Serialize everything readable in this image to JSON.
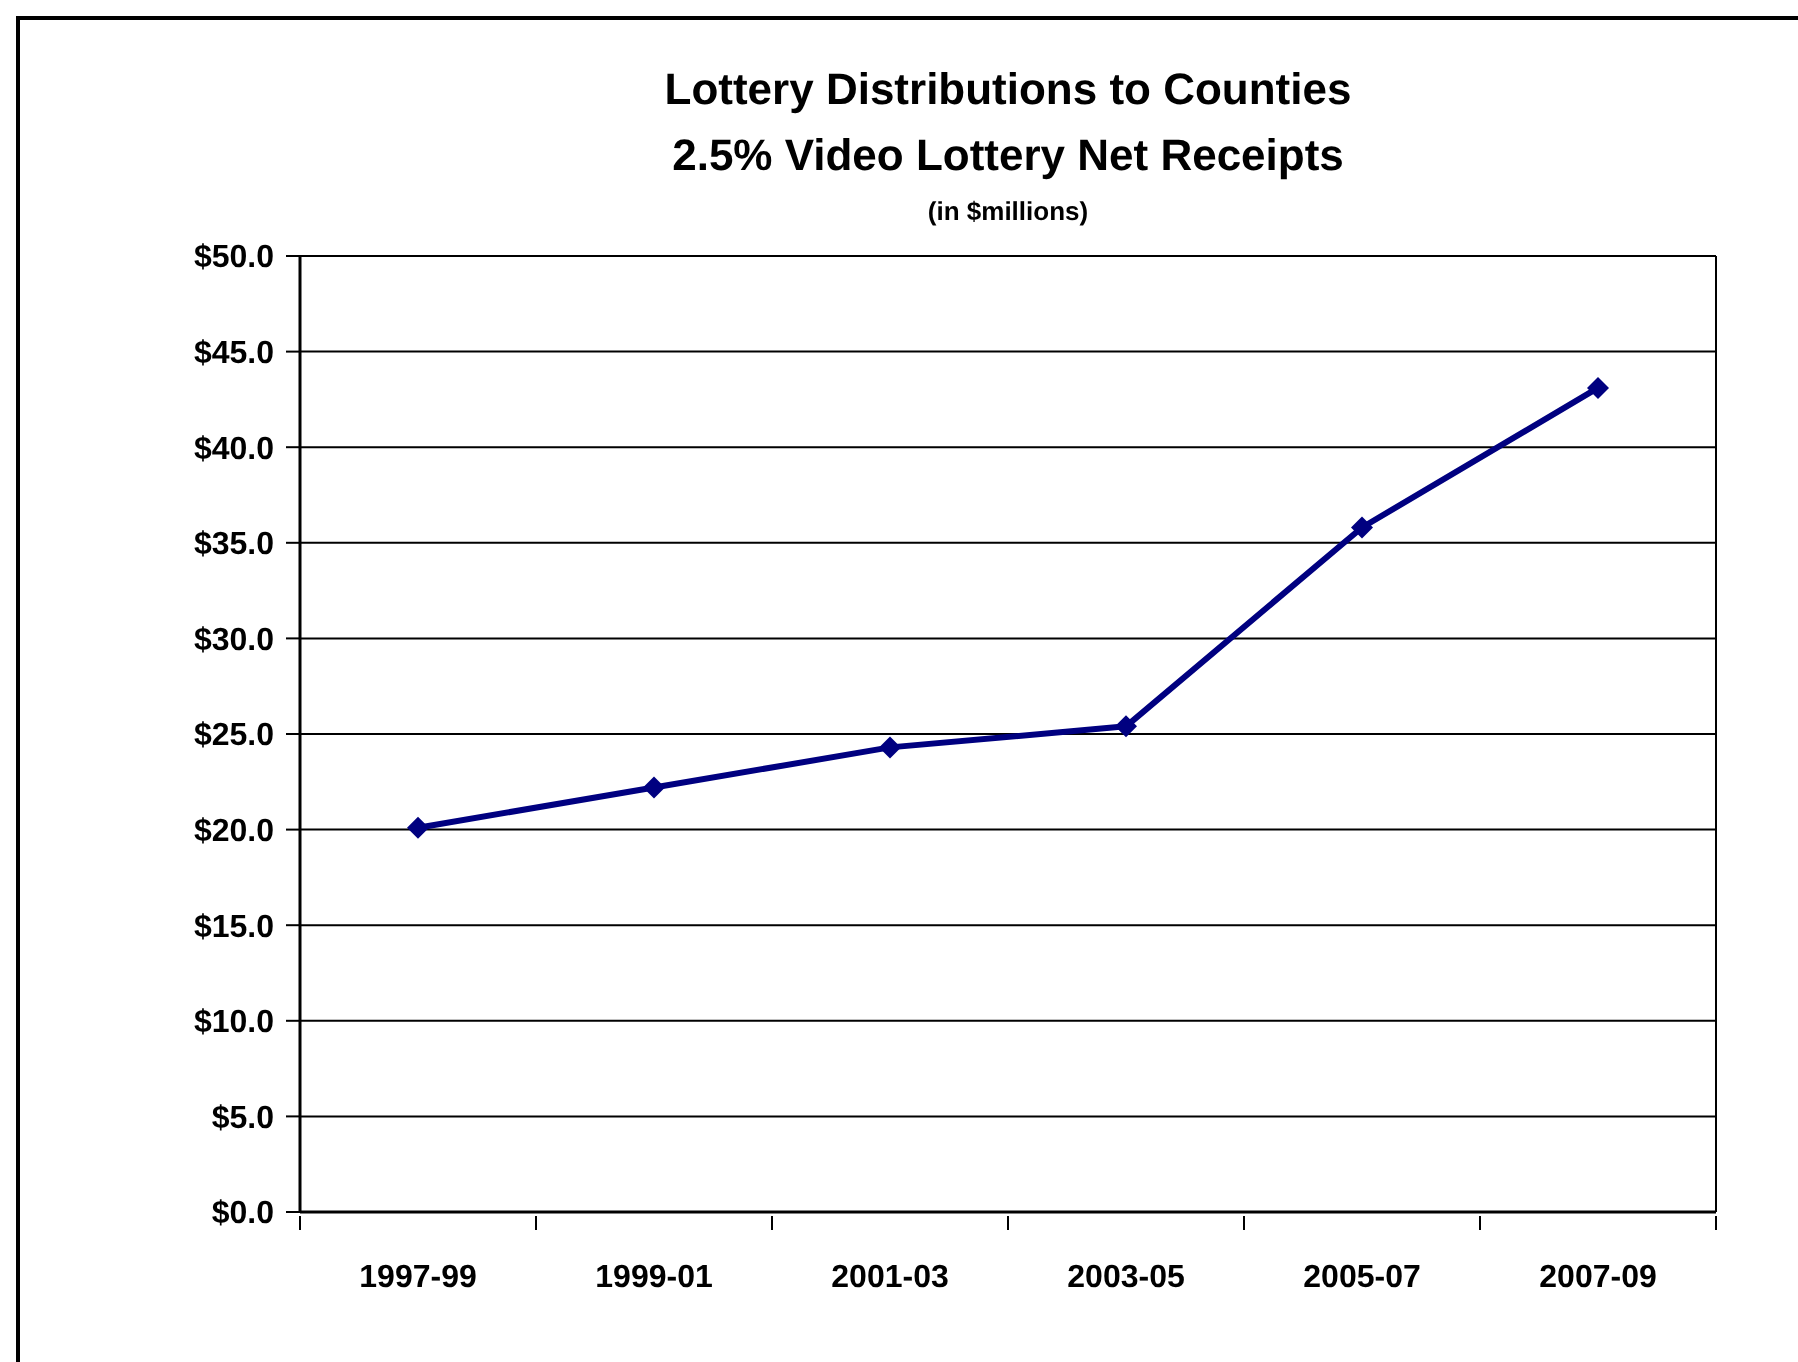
{
  "chart_data": {
    "type": "line",
    "title": "Lottery Distributions to Counties\n2.5% Video Lottery Net Receipts",
    "subtitle": "(in $millions)",
    "categories": [
      "1997-99",
      "1999-01",
      "2001-03",
      "2003-05",
      "2005-07",
      "2007-09"
    ],
    "values": [
      20.1,
      22.2,
      24.3,
      25.4,
      35.8,
      43.1
    ],
    "color": "#000080",
    "ylim": [
      0,
      50
    ],
    "yticks": [
      {
        "value": 0,
        "label": "$0.0"
      },
      {
        "value": 5,
        "label": "$5.0"
      },
      {
        "value": 10,
        "label": "$10.0"
      },
      {
        "value": 15,
        "label": "$15.0"
      },
      {
        "value": 20,
        "label": "$20.0"
      },
      {
        "value": 25,
        "label": "$25.0"
      },
      {
        "value": 30,
        "label": "$30.0"
      },
      {
        "value": 35,
        "label": "$35.0"
      },
      {
        "value": 40,
        "label": "$40.0"
      },
      {
        "value": 45,
        "label": "$45.0"
      },
      {
        "value": 50,
        "label": "$50.0"
      }
    ],
    "grid": "y",
    "marker": "diamond",
    "line_style": "solid"
  }
}
